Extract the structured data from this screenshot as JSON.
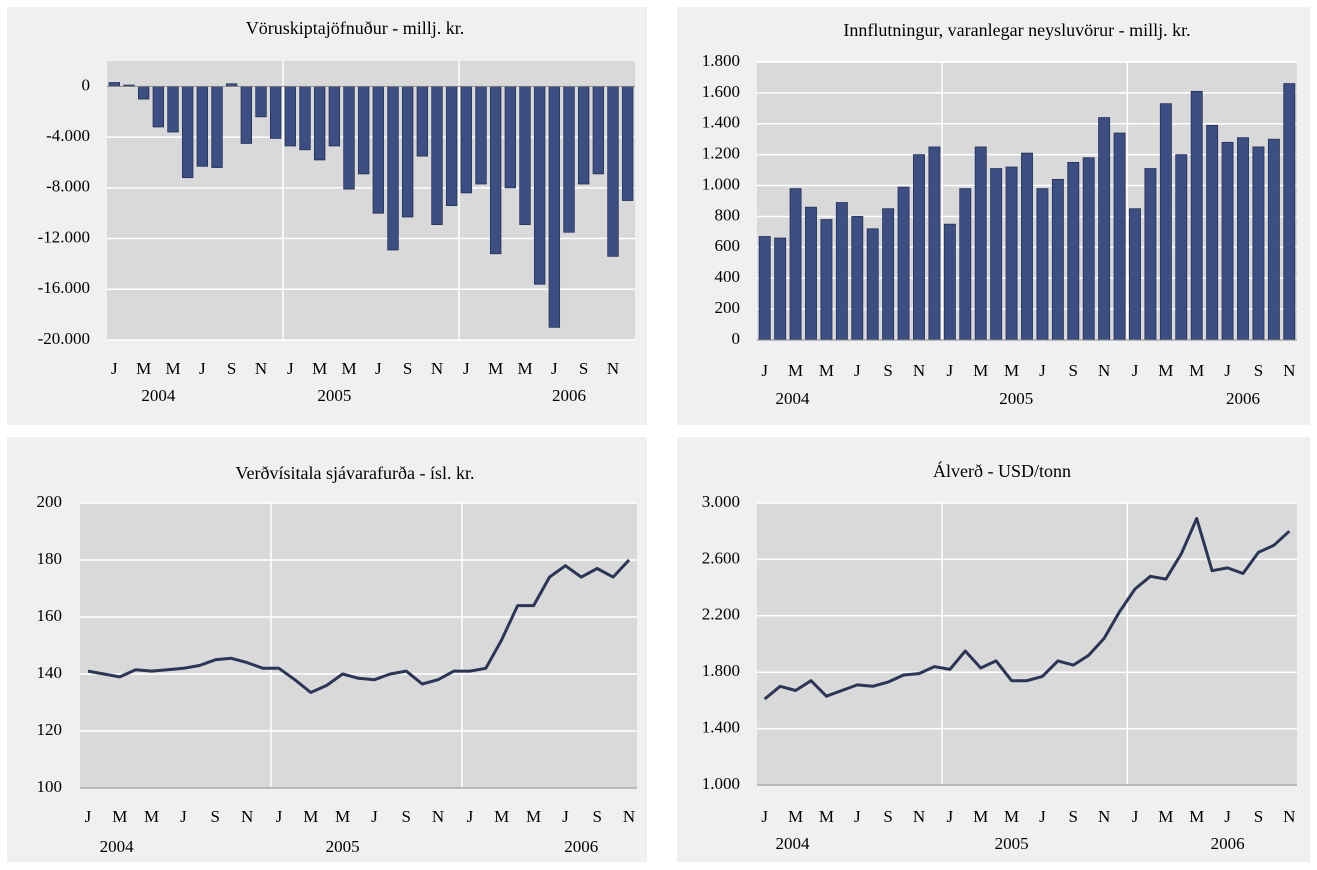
{
  "chart_data": [
    {
      "type": "bar",
      "title": "Vöruskiptajöfnuður - millj. kr.",
      "categories": [
        "J",
        null,
        "M",
        null,
        "M",
        null,
        "J",
        null,
        "S",
        null,
        "N",
        null,
        "J",
        null,
        "M",
        null,
        "M",
        null,
        "J",
        null,
        "S",
        null,
        "N",
        null,
        "J",
        null,
        "M",
        null,
        "M",
        null,
        "J",
        null,
        "S",
        null,
        "N",
        null
      ],
      "years": [
        "2004",
        "2005",
        "2006"
      ],
      "values": [
        300,
        100,
        -1000,
        -3200,
        -3600,
        -7200,
        -6300,
        -6400,
        200,
        -4500,
        -2400,
        -4100,
        -4700,
        -5000,
        -5800,
        -4700,
        -8100,
        -6900,
        -10000,
        -12900,
        -10300,
        -5500,
        -10900,
        -9400,
        -8400,
        -7700,
        -13200,
        -8000,
        -10900,
        -15600,
        -19000,
        -11500,
        -7700,
        -6900,
        -13400,
        -9000
      ],
      "color": "#3d4f82",
      "ylim": [
        -20000,
        2000
      ],
      "yticks": [
        0,
        {
          "value": -4000,
          "label": "-4.000"
        },
        {
          "value": -8000,
          "label": "-8.000"
        },
        {
          "value": -12000,
          "label": "-12.000"
        },
        {
          "value": -16000,
          "label": "-16.000"
        },
        {
          "value": -20000,
          "label": "-20.000"
        }
      ],
      "grid": true
    },
    {
      "type": "bar",
      "title": "Innflutningur, varanlegar neysluvörur - millj. kr.",
      "categories": [
        "J",
        null,
        "M",
        null,
        "M",
        null,
        "J",
        null,
        "S",
        null,
        "N",
        null,
        "J",
        null,
        "M",
        null,
        "M",
        null,
        "J",
        null,
        "S",
        null,
        "N",
        null,
        "J",
        null,
        "M",
        null,
        "M",
        null,
        "J",
        null,
        "S",
        null,
        "N"
      ],
      "years": [
        "2004",
        "2005",
        "2006"
      ],
      "values": [
        670,
        660,
        980,
        860,
        780,
        890,
        800,
        720,
        850,
        990,
        1200,
        1250,
        750,
        980,
        1250,
        1110,
        1120,
        1210,
        980,
        1040,
        1150,
        1180,
        1440,
        1340,
        850,
        1110,
        1530,
        1200,
        1610,
        1390,
        1280,
        1310,
        1250,
        1300,
        1660
      ],
      "color": "#3d4f82",
      "ylim": [
        0,
        1800
      ],
      "yticks": [
        0,
        200,
        400,
        600,
        800,
        {
          "value": 1000,
          "label": "1.000"
        },
        {
          "value": 1200,
          "label": "1.200"
        },
        {
          "value": 1400,
          "label": "1.400"
        },
        {
          "value": 1600,
          "label": "1.600"
        },
        {
          "value": 1800,
          "label": "1.800"
        }
      ],
      "grid": true
    },
    {
      "type": "line",
      "title": "Verðvísitala sjávarafurða - ísl. kr.",
      "categories": [
        "J",
        null,
        "M",
        null,
        "M",
        null,
        "J",
        null,
        "S",
        null,
        "N",
        null,
        "J",
        null,
        "M",
        null,
        "M",
        null,
        "J",
        null,
        "S",
        null,
        "N",
        null,
        "J",
        null,
        "M",
        null,
        "M",
        null,
        "J",
        null,
        "S",
        null,
        "N"
      ],
      "years": [
        "2004",
        "2005",
        "2006"
      ],
      "values": [
        141,
        140,
        139,
        141.5,
        141,
        141.5,
        142,
        143,
        145,
        145.5,
        144,
        142,
        142,
        138,
        133.5,
        136,
        140,
        138.5,
        138,
        140,
        141,
        136.5,
        138,
        141,
        141,
        142,
        152,
        164,
        164,
        174,
        178,
        174,
        177,
        174,
        180
      ],
      "color": "#2b3656",
      "ylim": [
        100,
        200
      ],
      "yticks": [
        100,
        120,
        140,
        160,
        180,
        200
      ],
      "grid": true
    },
    {
      "type": "line",
      "title": "Álverð - USD/tonn",
      "categories": [
        "J",
        null,
        "M",
        null,
        "M",
        null,
        "J",
        null,
        "S",
        null,
        "N",
        null,
        "J",
        null,
        "M",
        null,
        "M",
        null,
        "J",
        null,
        "S",
        null,
        "N",
        null,
        "J",
        null,
        "M",
        null,
        "M",
        null,
        "J",
        null,
        "S",
        null,
        "N"
      ],
      "years": [
        "2004",
        "2005",
        "2006"
      ],
      "values": [
        1610,
        1700,
        1670,
        1740,
        1630,
        1670,
        1710,
        1700,
        1730,
        1780,
        1790,
        1840,
        1820,
        1950,
        1830,
        1880,
        1740,
        1740,
        1770,
        1880,
        1850,
        1920,
        2040,
        2230,
        2390,
        2480,
        2460,
        2640,
        2890,
        2520,
        2540,
        2500,
        2650,
        2700,
        2800
      ],
      "color": "#2b3656",
      "ylim": [
        1000,
        3000
      ],
      "yticks": [
        {
          "value": 1000,
          "label": "1.000"
        },
        {
          "value": 1400,
          "label": "1.400"
        },
        {
          "value": 1800,
          "label": "1.800"
        },
        {
          "value": 2200,
          "label": "2.200"
        },
        {
          "value": 2600,
          "label": "2.600"
        },
        {
          "value": 3000,
          "label": "3.000"
        }
      ],
      "grid": true
    }
  ]
}
